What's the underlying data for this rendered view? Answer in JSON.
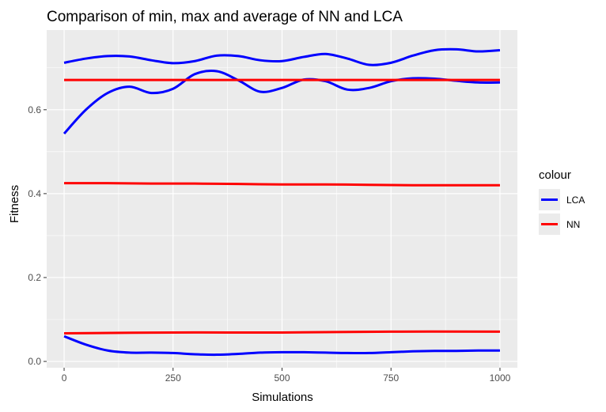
{
  "chart_data": {
    "type": "line",
    "title": "Comparison of min, max and average of NN and LCA",
    "xlabel": "Simulations",
    "ylabel": "Fitness",
    "xlim": [
      -40,
      1040
    ],
    "ylim": [
      -0.015,
      0.79
    ],
    "x_ticks": [
      0,
      250,
      500,
      750,
      1000
    ],
    "x_tick_labels": [
      "0",
      "250",
      "500",
      "750",
      "1000"
    ],
    "y_ticks": [
      0.0,
      0.2,
      0.4,
      0.6
    ],
    "y_tick_labels": [
      "0.0",
      "0.2",
      "0.4",
      "0.6"
    ],
    "grid": true,
    "legend": {
      "title": "colour",
      "placement": "right",
      "entries": [
        {
          "label": "LCA",
          "color": "#0000ff"
        },
        {
          "label": "NN",
          "color": "#ff0000"
        }
      ]
    },
    "series": [
      {
        "group": "LCA",
        "color": "#0000ff",
        "x": [
          0,
          50,
          100,
          150,
          200,
          250,
          300,
          350,
          400,
          450,
          500,
          550,
          600,
          650,
          700,
          750,
          800,
          850,
          900,
          950,
          1000
        ],
        "values": [
          0.712,
          0.722,
          0.728,
          0.727,
          0.718,
          0.711,
          0.716,
          0.729,
          0.728,
          0.718,
          0.716,
          0.726,
          0.733,
          0.722,
          0.707,
          0.712,
          0.729,
          0.742,
          0.744,
          0.739,
          0.742
        ]
      },
      {
        "group": "LCA",
        "color": "#0000ff",
        "x": [
          0,
          50,
          100,
          150,
          200,
          250,
          300,
          350,
          400,
          450,
          500,
          550,
          600,
          650,
          700,
          750,
          800,
          850,
          900,
          950,
          1000
        ],
        "values": [
          0.543,
          0.6,
          0.64,
          0.655,
          0.64,
          0.65,
          0.685,
          0.692,
          0.67,
          0.643,
          0.652,
          0.672,
          0.668,
          0.648,
          0.652,
          0.668,
          0.675,
          0.674,
          0.669,
          0.665,
          0.665
        ]
      },
      {
        "group": "NN",
        "color": "#ff0000",
        "x": [
          0,
          250,
          500,
          750,
          1000
        ],
        "values": [
          0.671,
          0.671,
          0.671,
          0.671,
          0.671
        ]
      },
      {
        "group": "NN",
        "color": "#ff0000",
        "x": [
          0,
          100,
          200,
          300,
          400,
          500,
          600,
          700,
          800,
          900,
          1000
        ],
        "values": [
          0.425,
          0.425,
          0.424,
          0.424,
          0.423,
          0.422,
          0.422,
          0.421,
          0.42,
          0.42,
          0.42
        ]
      },
      {
        "group": "NN",
        "color": "#ff0000",
        "x": [
          0,
          250,
          500,
          750,
          1000
        ],
        "values": [
          0.067,
          0.069,
          0.069,
          0.071,
          0.071
        ]
      },
      {
        "group": "LCA",
        "color": "#0000ff",
        "x": [
          0,
          50,
          100,
          150,
          200,
          250,
          300,
          350,
          400,
          450,
          500,
          550,
          600,
          650,
          700,
          750,
          800,
          850,
          900,
          950,
          1000
        ],
        "values": [
          0.06,
          0.04,
          0.026,
          0.021,
          0.021,
          0.02,
          0.017,
          0.016,
          0.018,
          0.021,
          0.022,
          0.022,
          0.021,
          0.02,
          0.02,
          0.022,
          0.024,
          0.025,
          0.025,
          0.026,
          0.026
        ]
      }
    ]
  }
}
